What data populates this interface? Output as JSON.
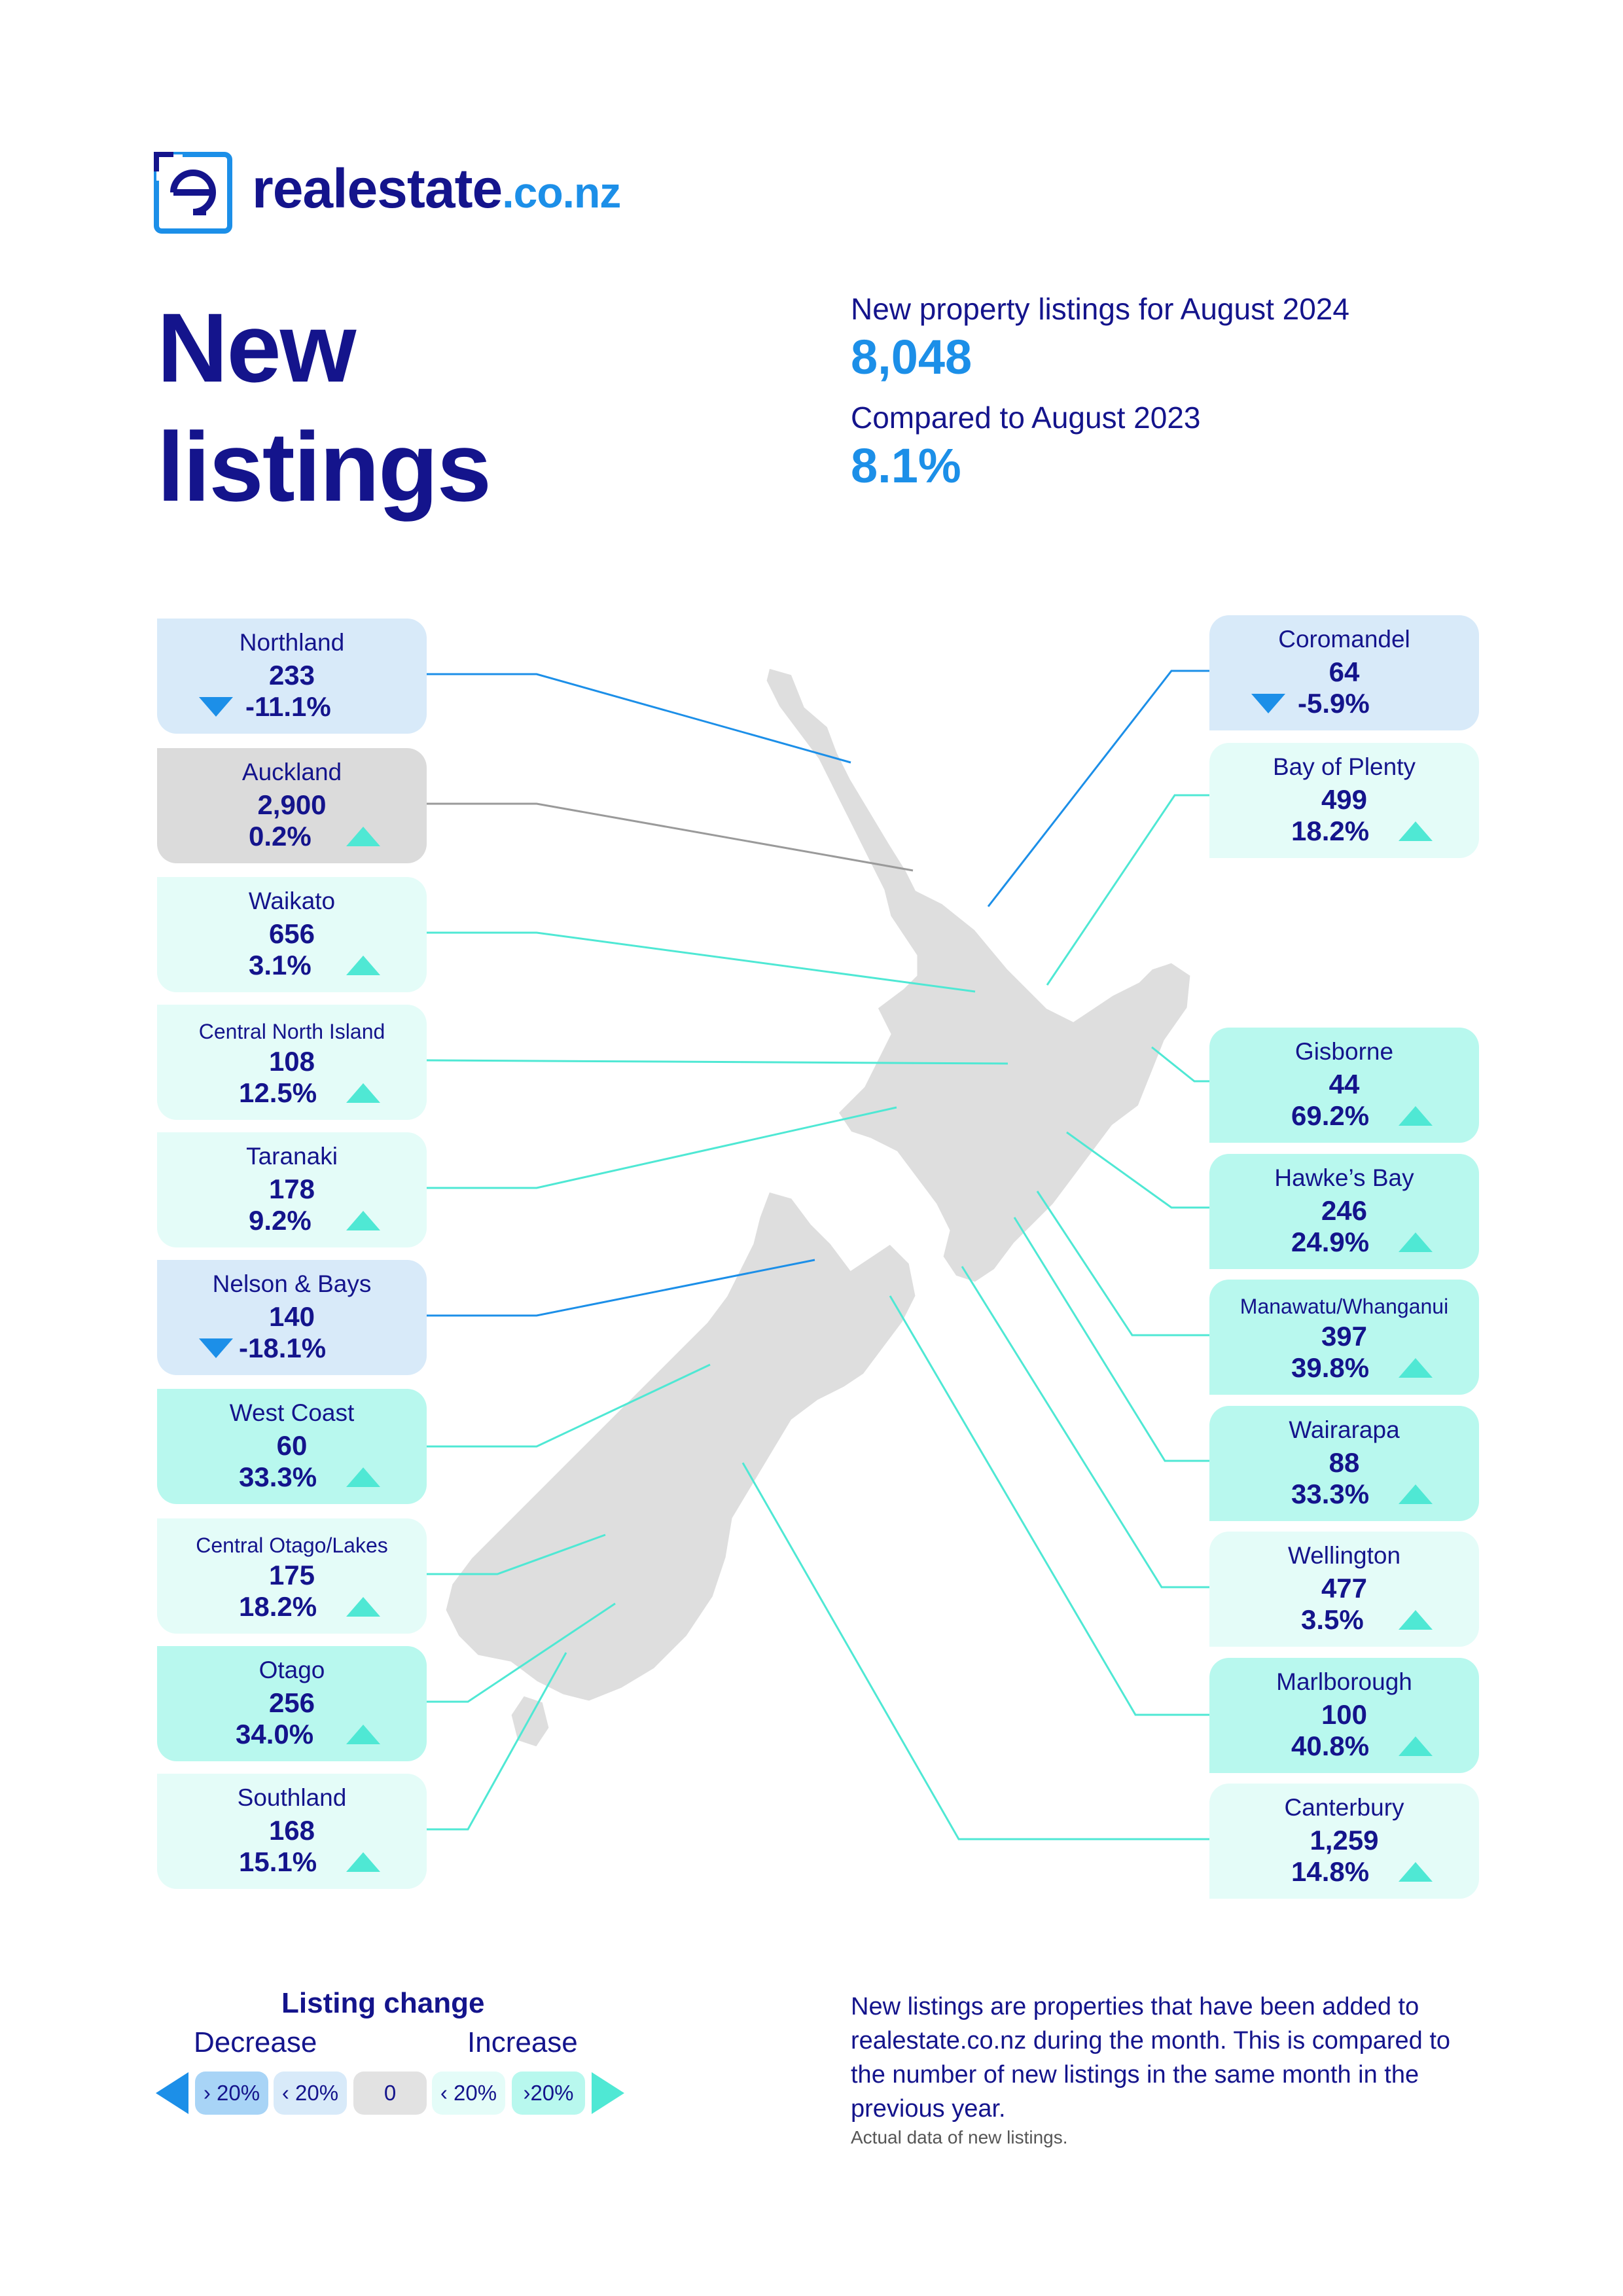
{
  "brand": {
    "name": "realestate",
    "tld": ".co.nz",
    "colors": {
      "navy": "#14148c",
      "blue": "#1c8fe8"
    }
  },
  "title": {
    "line1": "New",
    "line2": "listings"
  },
  "summary": {
    "listings_label": "New property listings for August 2024",
    "listings_value": "8,048",
    "compare_label": "Compared to August 2023",
    "compare_value": "8.1%"
  },
  "regions_left": [
    {
      "name": "Northland",
      "count": "233",
      "change": "-11.1%",
      "trend": "decrease"
    },
    {
      "name": "Auckland",
      "count": "2,900",
      "change": "0.2%",
      "trend": "increase"
    },
    {
      "name": "Waikato",
      "count": "656",
      "change": "3.1%",
      "trend": "increase"
    },
    {
      "name": "Central North Island",
      "count": "108",
      "change": "12.5%",
      "trend": "increase"
    },
    {
      "name": "Taranaki",
      "count": "178",
      "change": "9.2%",
      "trend": "increase"
    },
    {
      "name": "Nelson & Bays",
      "count": "140",
      "change": "-18.1%",
      "trend": "decrease"
    },
    {
      "name": "West Coast",
      "count": "60",
      "change": "33.3%",
      "trend": "increase"
    },
    {
      "name": "Central Otago/Lakes",
      "count": "175",
      "change": "18.2%",
      "trend": "increase"
    },
    {
      "name": "Otago",
      "count": "256",
      "change": "34.0%",
      "trend": "increase"
    },
    {
      "name": "Southland",
      "count": "168",
      "change": "15.1%",
      "trend": "increase"
    }
  ],
  "regions_right": [
    {
      "name": "Coromandel",
      "count": "64",
      "change": "-5.9%",
      "trend": "decrease"
    },
    {
      "name": "Bay of Plenty",
      "count": "499",
      "change": "18.2%",
      "trend": "increase"
    },
    {
      "name": "Gisborne",
      "count": "44",
      "change": "69.2%",
      "trend": "increase"
    },
    {
      "name": "Hawke’s Bay",
      "count": "246",
      "change": "24.9%",
      "trend": "increase"
    },
    {
      "name": "Manawatu/Whanganui",
      "count": "397",
      "change": "39.8%",
      "trend": "increase"
    },
    {
      "name": "Wairarapa",
      "count": "88",
      "change": "33.3%",
      "trend": "increase"
    },
    {
      "name": "Wellington",
      "count": "477",
      "change": "3.5%",
      "trend": "increase"
    },
    {
      "name": "Marlborough",
      "count": "100",
      "change": "40.8%",
      "trend": "increase"
    },
    {
      "name": "Canterbury",
      "count": "1,259",
      "change": "14.8%",
      "trend": "increase"
    }
  ],
  "legend": {
    "title": "Listing change",
    "decrease": "Decrease",
    "increase": "Increase",
    "chips": [
      {
        "label": "› 20%",
        "color": "#a8d4f6"
      },
      {
        "label": "‹ 20%",
        "color": "#d8eaf9"
      },
      {
        "label": "0",
        "color": "#e2e2e2"
      },
      {
        "label": "‹ 20%",
        "color": "#e4fcf8"
      },
      {
        "label": "›20%",
        "color": "#b8f8ee"
      }
    ]
  },
  "footnote": {
    "text": "New listings are properties that have been added to realestate.co.nz during the month. This is compared to the number of new listings in the same month in the previous year.",
    "small": "Actual data of new listings."
  }
}
